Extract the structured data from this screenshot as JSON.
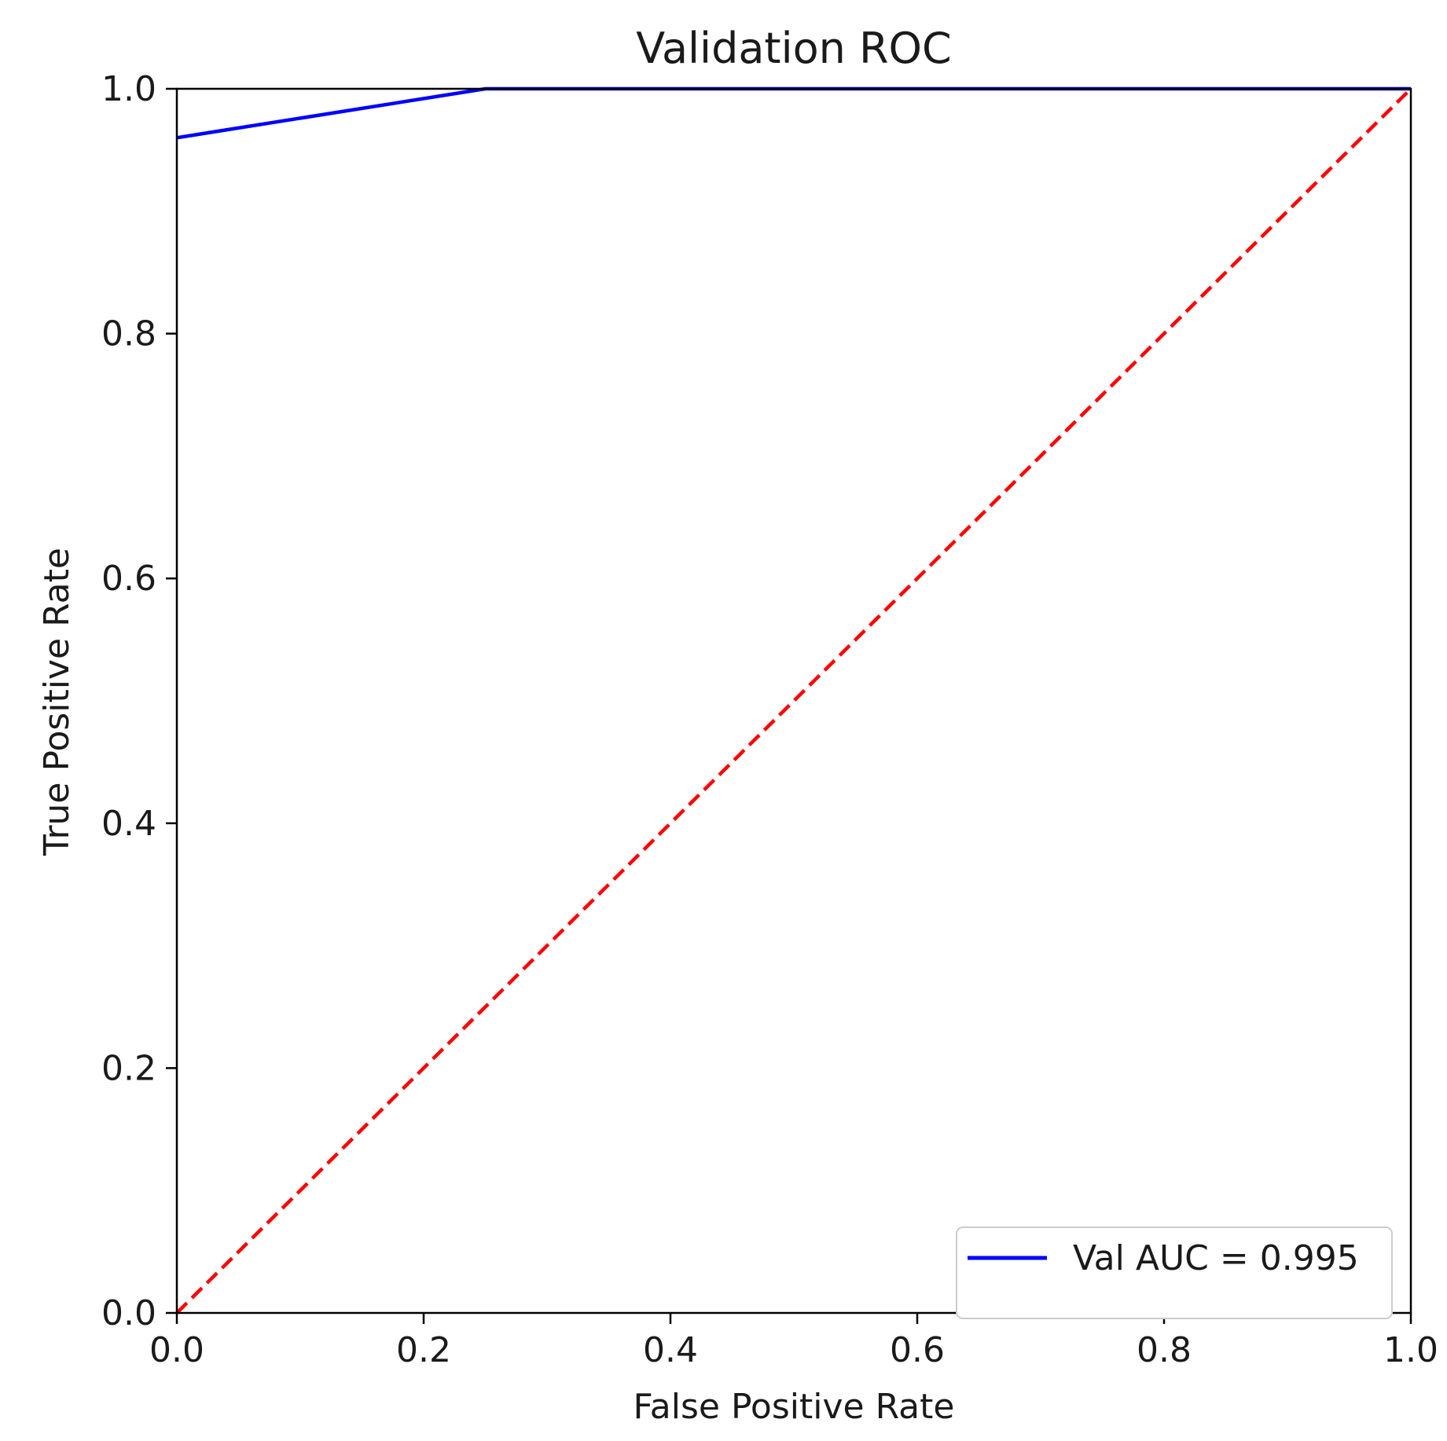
{
  "chart_data": {
    "type": "line",
    "title": "Validation ROC",
    "xlabel": "False Positive Rate",
    "ylabel": "True Positive Rate",
    "xlim": [
      0.0,
      1.0
    ],
    "ylim": [
      0.0,
      1.0
    ],
    "grid": false,
    "legend_location": "lower-right",
    "x_ticks": [
      0.0,
      0.2,
      0.4,
      0.6,
      0.8,
      1.0
    ],
    "x_tick_labels": [
      "0.0",
      "0.2",
      "0.4",
      "0.6",
      "0.8",
      "1.0"
    ],
    "y_ticks": [
      0.0,
      0.2,
      0.4,
      0.6,
      0.8,
      1.0
    ],
    "y_tick_labels": [
      "0.0",
      "0.2",
      "0.4",
      "0.6",
      "0.8",
      "1.0"
    ],
    "series": [
      {
        "name": "Val AUC = 0.995",
        "color": "#0000ff",
        "style": "solid",
        "x": [
          0.0,
          0.25,
          1.0
        ],
        "y": [
          0.96,
          1.0,
          1.0
        ],
        "in_legend": true
      },
      {
        "name": "chance",
        "color": "#ff0000",
        "style": "dashed",
        "x": [
          0.0,
          1.0
        ],
        "y": [
          0.0,
          1.0
        ],
        "in_legend": false
      }
    ]
  }
}
